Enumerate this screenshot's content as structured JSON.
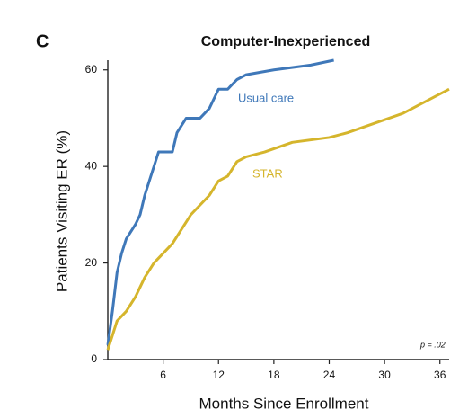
{
  "chart_data": {
    "type": "line",
    "panel_label": "C",
    "title": "Computer-Inexperienced",
    "x_label": "Months Since Enrollment",
    "y_label": "Patients Visiting ER (%)",
    "annotations": [
      "Usual care",
      "STAR",
      "p = .02"
    ],
    "series": [
      {
        "name": "Usual care",
        "color": "#3f78b9",
        "x": [
          0,
          0.5,
          1,
          1.5,
          2,
          3,
          3.5,
          4,
          4.5,
          5,
          5.5,
          7,
          7.5,
          8.5,
          10,
          11,
          12,
          13,
          14,
          15,
          18,
          22,
          24.5
        ],
        "values": [
          3,
          10,
          18,
          22,
          25,
          28,
          30,
          34,
          37,
          40,
          43,
          43,
          47,
          50,
          50,
          52,
          56,
          56,
          58,
          59,
          60,
          61,
          62
        ]
      },
      {
        "name": "STAR",
        "color": "#d5b52c",
        "x": [
          0,
          0.5,
          1,
          2,
          3,
          4,
          5,
          6,
          7,
          8,
          9,
          10,
          11,
          12,
          13,
          14,
          15,
          17,
          20,
          24,
          26,
          29,
          32,
          34,
          36,
          37
        ],
        "values": [
          2,
          5,
          8,
          10,
          13,
          17,
          20,
          22,
          24,
          27,
          30,
          32,
          34,
          37,
          38,
          41,
          42,
          43,
          45,
          46,
          47,
          49,
          51,
          53,
          55,
          56
        ]
      }
    ],
    "xlim": [
      0,
      37
    ],
    "ylim": [
      0,
      62
    ],
    "xticks": [
      6,
      12,
      18,
      24,
      30,
      36
    ],
    "yticks": [
      0,
      20,
      40,
      60
    ]
  }
}
